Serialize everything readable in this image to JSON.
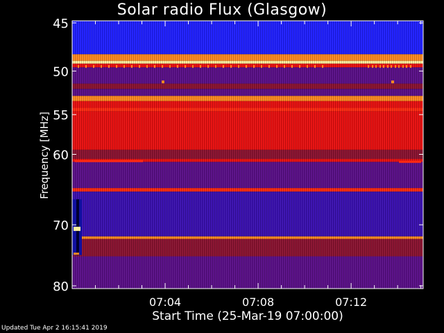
{
  "chart_data": {
    "type": "heatmap",
    "title": "Solar radio Flux (Glasgow)",
    "ylabel": "Frequency [MHz]",
    "xlabel": "Start Time (25-Mar-19 07:00:00)",
    "ylim": [
      45,
      80
    ],
    "y_scale": "log",
    "y_ticks": [
      45,
      50,
      55,
      60,
      70,
      80
    ],
    "x_range_minutes": [
      0,
      15.1
    ],
    "x_ticks": [
      {
        "minute": 4,
        "label": "07:04"
      },
      {
        "minute": 8,
        "label": "07:08"
      },
      {
        "minute": 12,
        "label": "07:12"
      }
    ],
    "colors": {
      "blue": "#2020ff",
      "indigo": "#3a10b0",
      "purple": "#5a0f88",
      "maroon": "#8a1230",
      "red": "#e81010",
      "bright_red": "#ff2a10",
      "orange": "#ff8a20",
      "yellow": "#fff0a0"
    },
    "bands": [
      {
        "from": 45.0,
        "to": 48.2,
        "color": "blue"
      },
      {
        "from": 48.2,
        "to": 48.9,
        "color": "orange"
      },
      {
        "from": 48.9,
        "to": 49.2,
        "color": "yellow"
      },
      {
        "from": 49.2,
        "to": 49.6,
        "color": "red"
      },
      {
        "from": 49.6,
        "to": 51.4,
        "color": "purple"
      },
      {
        "from": 51.4,
        "to": 52.0,
        "color": "maroon"
      },
      {
        "from": 52.0,
        "to": 52.8,
        "color": "purple"
      },
      {
        "from": 52.8,
        "to": 53.4,
        "color": "orange"
      },
      {
        "from": 53.4,
        "to": 54.2,
        "color": "red"
      },
      {
        "from": 54.2,
        "to": 54.6,
        "color": "bright_red"
      },
      {
        "from": 54.6,
        "to": 59.4,
        "color": "red"
      },
      {
        "from": 59.4,
        "to": 60.6,
        "color": "maroon"
      },
      {
        "from": 60.6,
        "to": 61.0,
        "color": "red"
      },
      {
        "from": 61.0,
        "to": 64.6,
        "color": "purple"
      },
      {
        "from": 64.6,
        "to": 65.1,
        "color": "bright_red"
      },
      {
        "from": 65.1,
        "to": 71.8,
        "color": "indigo"
      },
      {
        "from": 71.8,
        "to": 72.2,
        "color": "orange"
      },
      {
        "from": 72.2,
        "to": 75.0,
        "color": "maroon"
      },
      {
        "from": 75.0,
        "to": 80.0,
        "color": "purple"
      }
    ]
  },
  "footer": {
    "updated": "Updated Tue Apr  2 16:15:41 2019"
  }
}
